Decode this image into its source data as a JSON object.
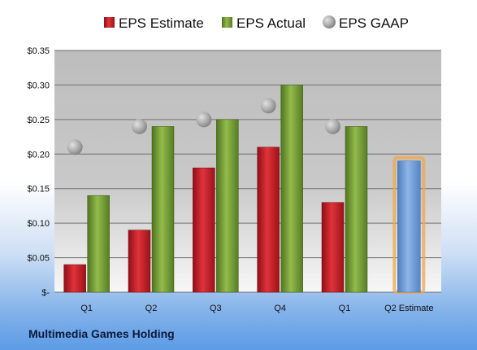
{
  "chart_data": {
    "type": "bar",
    "categories": [
      "Q1",
      "Q2",
      "Q3",
      "Q4",
      "Q1",
      "Q2 Estimate"
    ],
    "series": [
      {
        "name": "EPS Estimate",
        "kind": "bar",
        "color": "#c8202a",
        "values": [
          0.04,
          0.09,
          0.18,
          0.21,
          0.13,
          null
        ]
      },
      {
        "name": "EPS Actual",
        "kind": "bar",
        "color": "#7aa036",
        "values": [
          0.14,
          0.24,
          0.25,
          0.3,
          0.24,
          null
        ]
      },
      {
        "name": "EPS GAAP",
        "kind": "marker",
        "color": "#a9a9a9",
        "values": [
          0.21,
          0.24,
          0.25,
          0.27,
          0.24,
          null
        ]
      }
    ],
    "estimate": {
      "category_index": 5,
      "value": 0.19,
      "color": "#6c9bd6",
      "glow": "#f2a54a"
    },
    "y_ticks": [
      {
        "value": 0,
        "label": "$-"
      },
      {
        "value": 0.05,
        "label": "$0.05"
      },
      {
        "value": 0.1,
        "label": "$0.10"
      },
      {
        "value": 0.15,
        "label": "$0.15"
      },
      {
        "value": 0.2,
        "label": "$0.20"
      },
      {
        "value": 0.25,
        "label": "$0.25"
      },
      {
        "value": 0.3,
        "label": "$0.30"
      },
      {
        "value": 0.35,
        "label": "$0.35"
      }
    ],
    "ylim": [
      0,
      0.35
    ],
    "grid": true,
    "legend_position": "top",
    "title": "",
    "xlabel": "",
    "ylabel": ""
  },
  "footer": {
    "company": "Multimedia Games Holding"
  }
}
